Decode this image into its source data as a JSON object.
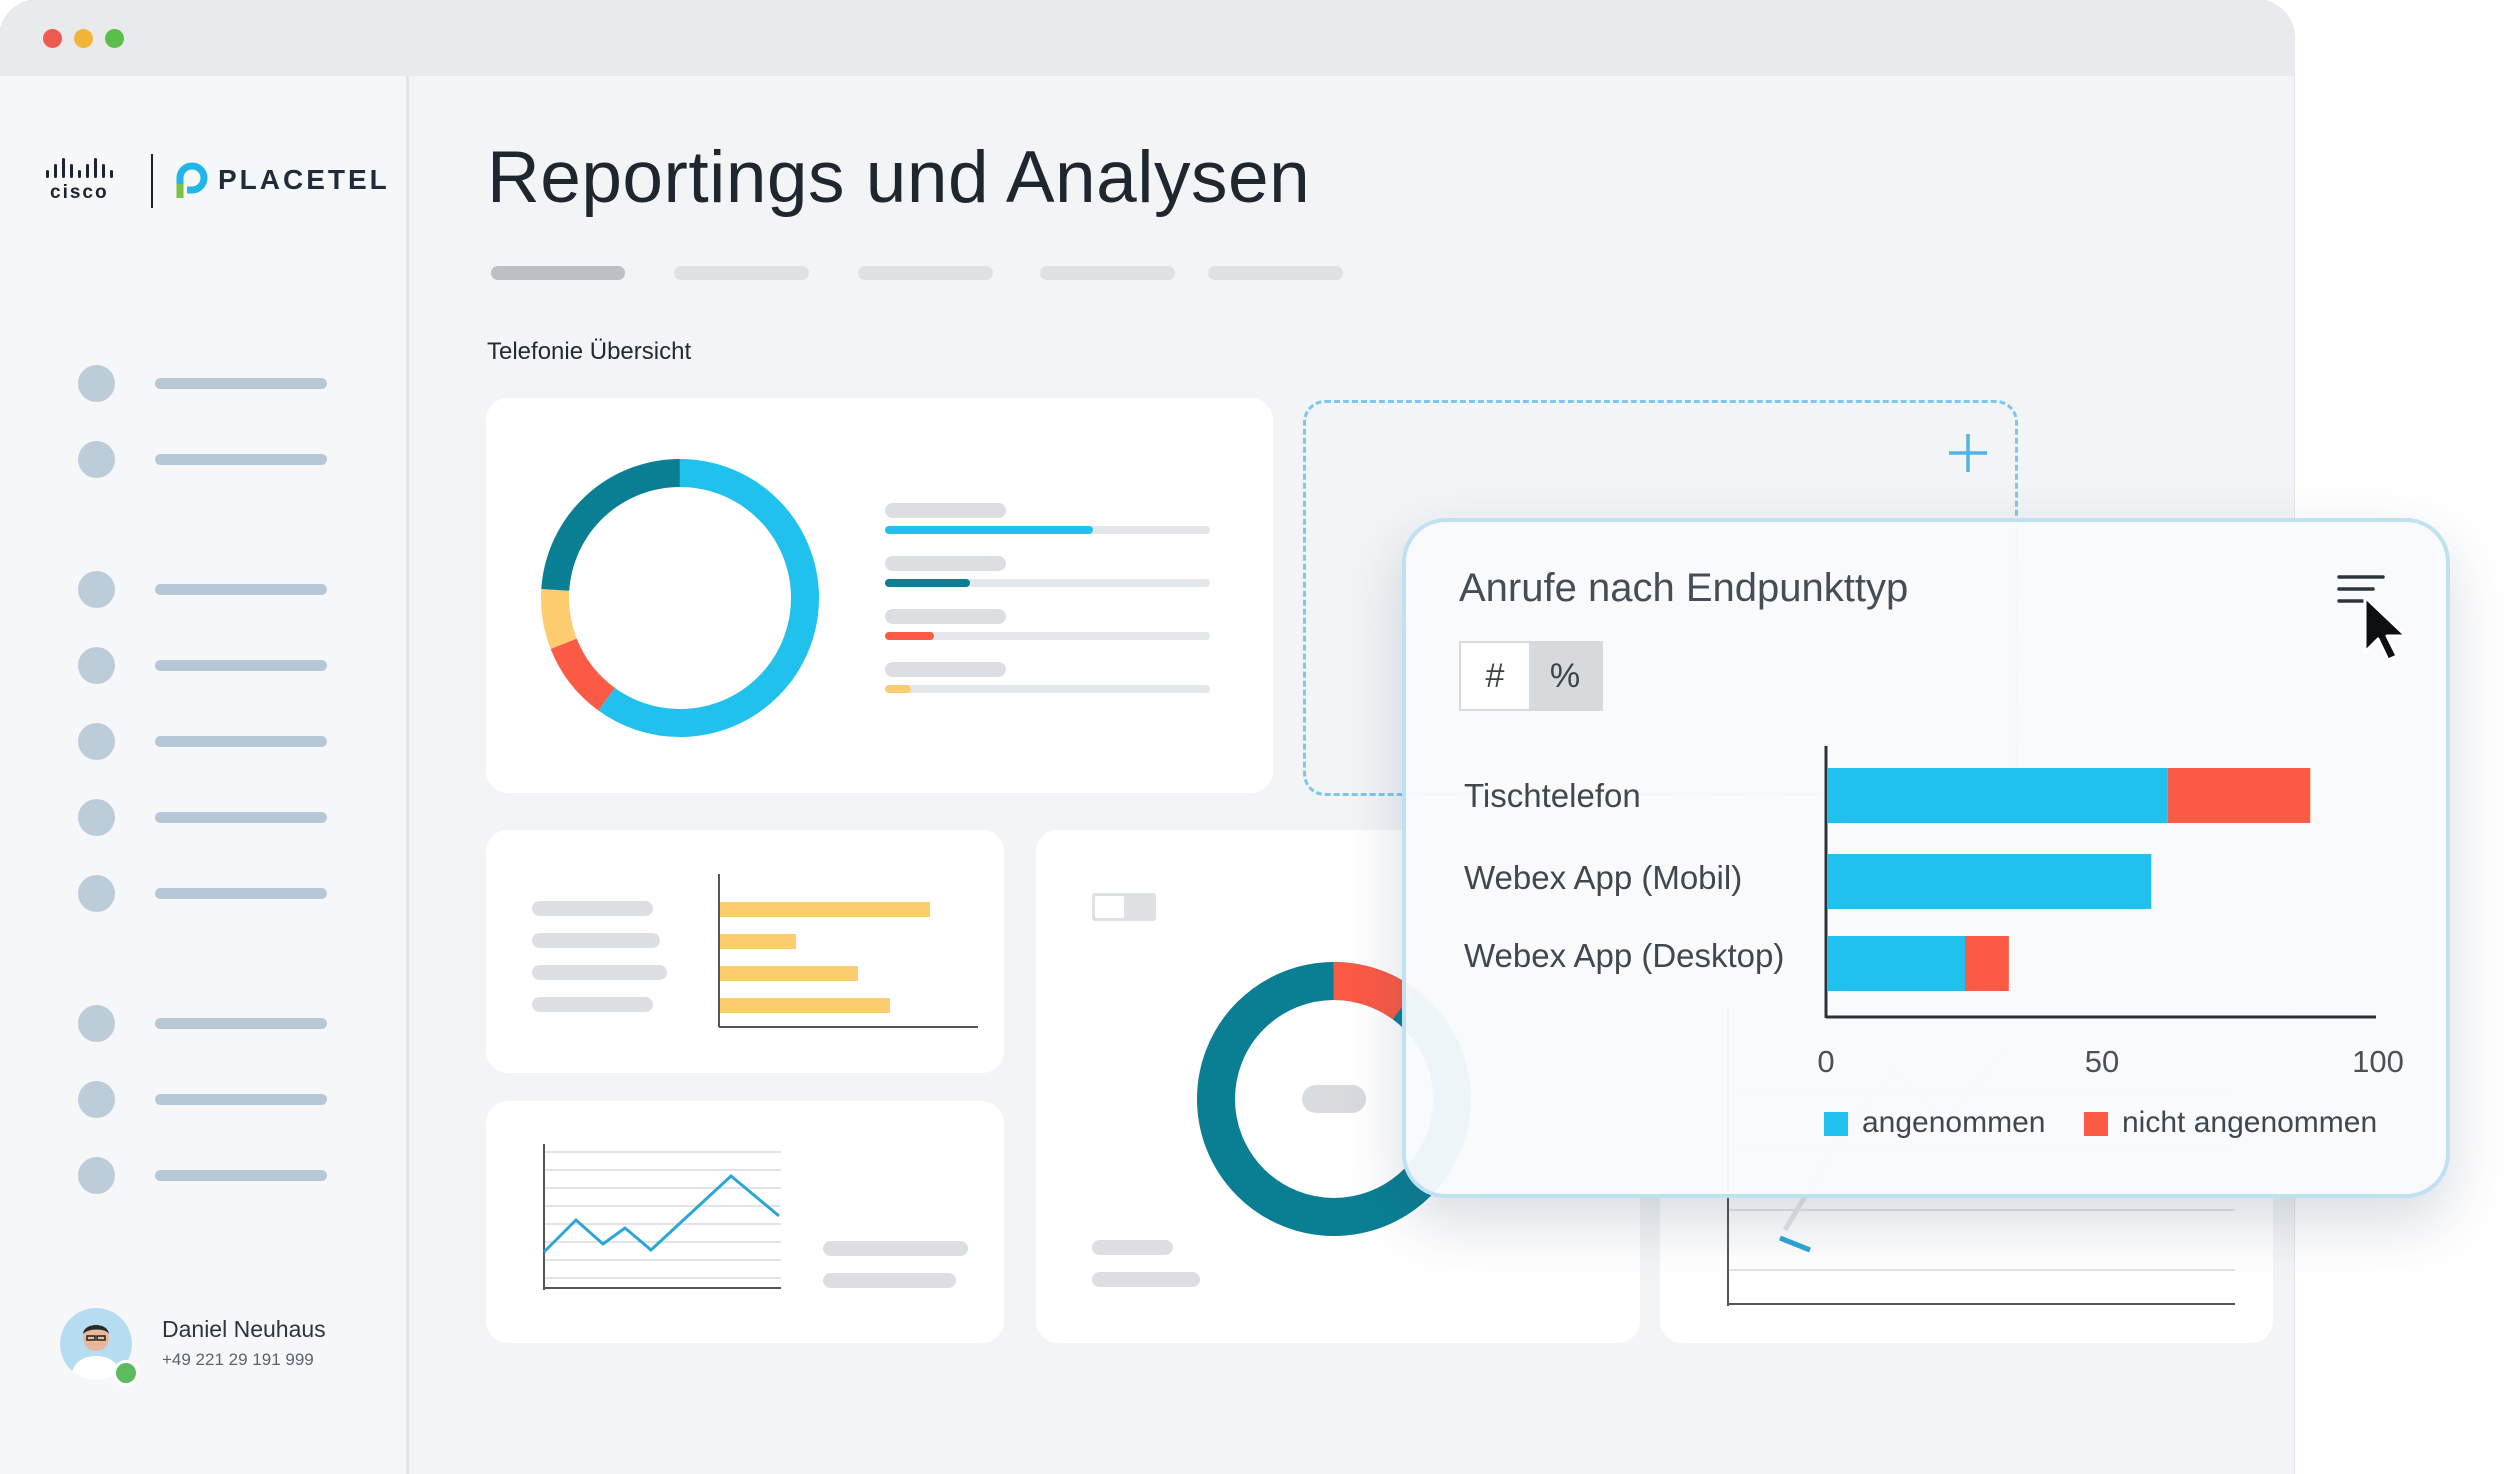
{
  "brand": {
    "cisco_label": "cisco",
    "placetel_label": "PLACETEL"
  },
  "page": {
    "title": "Reportings und Analysen",
    "section_label": "Telefonie Übersicht"
  },
  "user": {
    "name": "Daniel Neuhaus",
    "phone": "+49 221 29 191 999",
    "status_color": "#5cbb5c"
  },
  "popup": {
    "title": "Anrufe nach Endpunkttyp",
    "toggle_hash": "#",
    "toggle_percent": "%",
    "menu_icon": "menu-lines-icon",
    "cursor_icon": "cursor-arrow-icon"
  },
  "add_widget": {
    "icon": "plus-icon"
  },
  "colors": {
    "accent_blue": "#21c1ee",
    "teal": "#0a7f94",
    "red": "#fb5a45",
    "yellow": "#fdcc6f"
  },
  "chart_data": {
    "type": "bar",
    "orientation": "horizontal",
    "stacked": true,
    "categories": [
      "Tischtelefon",
      "Webex App (Mobil)",
      "Webex App (Desktop)"
    ],
    "series": [
      {
        "name": "angenommen",
        "color": "#21c1ee",
        "values": [
          62,
          59,
          25
        ]
      },
      {
        "name": "nicht angenommen",
        "color": "#fb5a45",
        "values": [
          26,
          0,
          8
        ]
      }
    ],
    "xlim": [
      0,
      100
    ],
    "xticks": [
      "0",
      "50",
      "100"
    ],
    "legend_position": "bottom"
  }
}
